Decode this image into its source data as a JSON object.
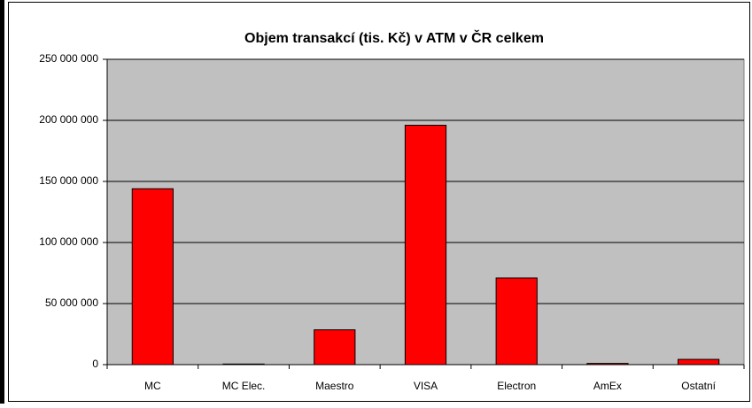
{
  "chart_data": {
    "type": "bar",
    "title": "Objem transakcí (tis. Kč) v ATM v ČR celkem",
    "categories": [
      "MC",
      "MC Elec.",
      "Maestro",
      "VISA",
      "Electron",
      "AmEx",
      "Ostatní"
    ],
    "values": [
      144000000,
      500000,
      28500000,
      196000000,
      71000000,
      1000000,
      4300000
    ],
    "color": "#ff0000",
    "ylim": [
      0,
      250000000
    ],
    "yticks": [
      0,
      {
        "value": 50000000,
        "label": "50 000 000"
      },
      {
        "value": 100000000,
        "label": "100 000 000"
      },
      {
        "value": 150000000,
        "label": "150 000 000"
      },
      {
        "value": 200000000,
        "label": "200 000 000"
      },
      {
        "value": 250000000,
        "label": "250 000 000"
      }
    ],
    "grid": true
  }
}
